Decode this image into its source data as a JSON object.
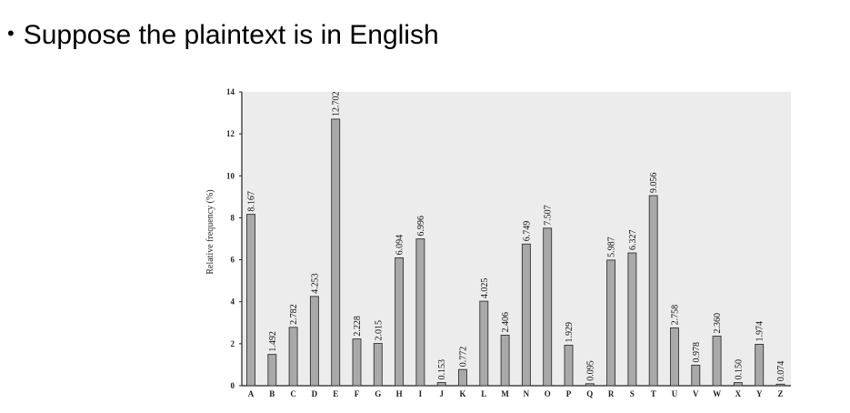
{
  "slide": {
    "bullet_text": "Suppose the plaintext is in English"
  },
  "chart_data": {
    "type": "bar",
    "ylabel": "Relative frequency (%)",
    "xlabel": "",
    "ylim": [
      0,
      14
    ],
    "yticks": [
      0,
      2,
      4,
      6,
      8,
      10,
      12,
      14
    ],
    "grid": false,
    "background": "#ececec",
    "bar_color": "#a9a9a9",
    "categories": [
      "A",
      "B",
      "C",
      "D",
      "E",
      "F",
      "G",
      "H",
      "I",
      "J",
      "K",
      "L",
      "M",
      "N",
      "O",
      "P",
      "Q",
      "R",
      "S",
      "T",
      "U",
      "V",
      "W",
      "X",
      "Y",
      "Z"
    ],
    "values": [
      8.167,
      1.492,
      2.782,
      4.253,
      12.702,
      2.228,
      2.015,
      6.094,
      6.996,
      0.153,
      0.772,
      4.025,
      2.406,
      6.749,
      7.507,
      1.929,
      0.095,
      5.987,
      6.327,
      9.056,
      2.758,
      0.978,
      2.36,
      0.15,
      1.974,
      0.074
    ],
    "labels": [
      "8.167",
      "1.492",
      "2.782",
      "4.253",
      "12.702",
      "2.228",
      "2.015",
      "6.094",
      "6.996",
      "0.153",
      "0.772",
      "4.025",
      "2.406",
      "6.749",
      "7.507",
      "1.929",
      "0.095",
      "5.987",
      "6.327",
      "9.056",
      "2.758",
      "0.978",
      "2.360",
      "0.150",
      "1.974",
      "0.074"
    ]
  }
}
